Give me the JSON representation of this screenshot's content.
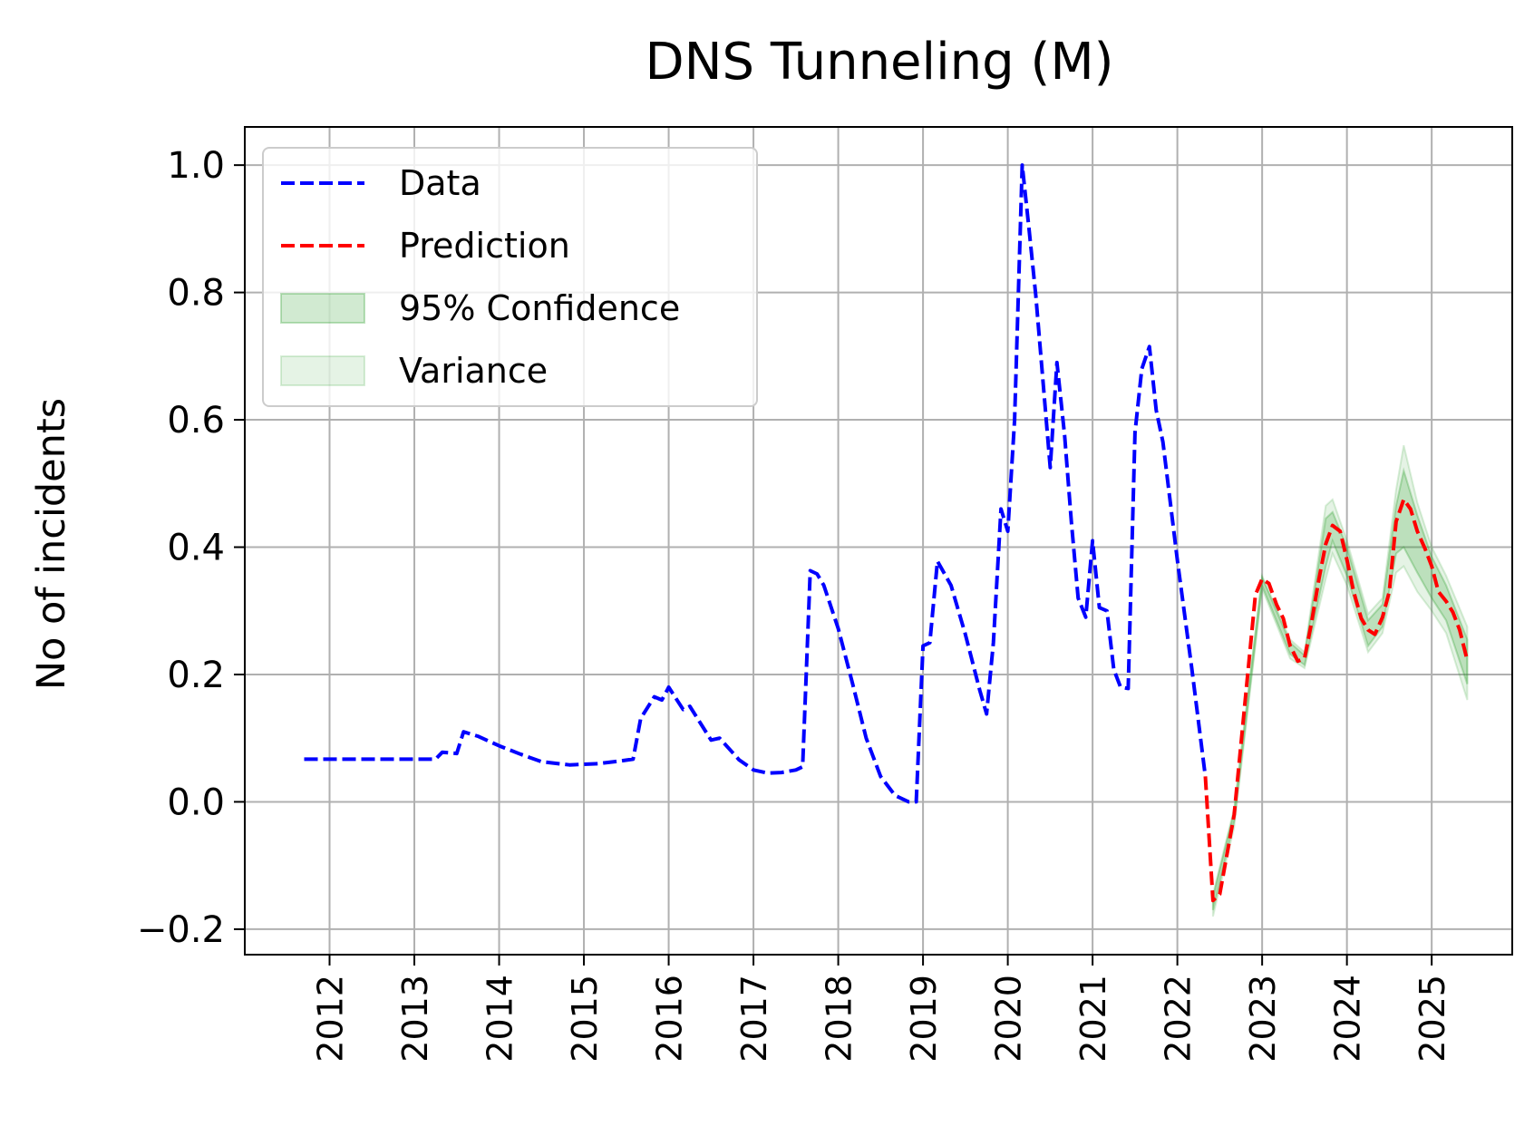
{
  "chart_data": {
    "type": "line",
    "title": "DNS Tunneling (M)",
    "xlabel": "",
    "ylabel": "No of incidents",
    "xlim": [
      2011.0,
      2025.95
    ],
    "ylim": [
      -0.24,
      1.06
    ],
    "x_ticks": [
      "2012",
      "2013",
      "2014",
      "2015",
      "2016",
      "2017",
      "2018",
      "2019",
      "2020",
      "2021",
      "2022",
      "2023",
      "2024",
      "2025"
    ],
    "y_ticks": [
      "1.0",
      "0.8",
      "0.6",
      "0.4",
      "0.2",
      "0.0",
      "−0.2"
    ],
    "grid": true,
    "legend_position": "top-left",
    "legend": [
      "Data",
      "Prediction",
      "95% Confidence",
      "Variance"
    ],
    "colors": {
      "data": "#0000ff",
      "prediction": "#ff0000",
      "confidence": "#2ca02c",
      "grid": "#b0b0b0"
    },
    "series": [
      {
        "name": "Data",
        "style": "dashed",
        "points": [
          [
            2011.7,
            0.067
          ],
          [
            2012.5,
            0.067
          ],
          [
            2013.0,
            0.067
          ],
          [
            2013.25,
            0.067
          ],
          [
            2013.33,
            0.078
          ],
          [
            2013.5,
            0.076
          ],
          [
            2013.58,
            0.11
          ],
          [
            2013.75,
            0.103
          ],
          [
            2014.0,
            0.088
          ],
          [
            2014.25,
            0.075
          ],
          [
            2014.5,
            0.063
          ],
          [
            2014.83,
            0.058
          ],
          [
            2015.17,
            0.06
          ],
          [
            2015.42,
            0.064
          ],
          [
            2015.58,
            0.067
          ],
          [
            2015.67,
            0.131
          ],
          [
            2015.83,
            0.165
          ],
          [
            2015.92,
            0.16
          ],
          [
            2016.0,
            0.18
          ],
          [
            2016.17,
            0.145
          ],
          [
            2016.25,
            0.15
          ],
          [
            2016.5,
            0.097
          ],
          [
            2016.6,
            0.1
          ],
          [
            2016.83,
            0.066
          ],
          [
            2017.0,
            0.05
          ],
          [
            2017.17,
            0.045
          ],
          [
            2017.33,
            0.046
          ],
          [
            2017.5,
            0.05
          ],
          [
            2017.58,
            0.055
          ],
          [
            2017.67,
            0.363
          ],
          [
            2017.75,
            0.358
          ],
          [
            2017.83,
            0.34
          ],
          [
            2018.0,
            0.272
          ],
          [
            2018.17,
            0.185
          ],
          [
            2018.33,
            0.1
          ],
          [
            2018.5,
            0.04
          ],
          [
            2018.67,
            0.01
          ],
          [
            2018.83,
            0.0
          ],
          [
            2018.92,
            0.0
          ],
          [
            2019.0,
            0.245
          ],
          [
            2019.08,
            0.25
          ],
          [
            2019.17,
            0.378
          ],
          [
            2019.33,
            0.34
          ],
          [
            2019.5,
            0.263
          ],
          [
            2019.67,
            0.175
          ],
          [
            2019.75,
            0.138
          ],
          [
            2019.83,
            0.25
          ],
          [
            2019.92,
            0.46
          ],
          [
            2020.0,
            0.425
          ],
          [
            2020.08,
            0.6
          ],
          [
            2020.17,
            1.0
          ],
          [
            2020.25,
            0.9
          ],
          [
            2020.33,
            0.795
          ],
          [
            2020.5,
            0.525
          ],
          [
            2020.58,
            0.69
          ],
          [
            2020.67,
            0.575
          ],
          [
            2020.75,
            0.44
          ],
          [
            2020.83,
            0.32
          ],
          [
            2020.92,
            0.29
          ],
          [
            2021.0,
            0.41
          ],
          [
            2021.08,
            0.305
          ],
          [
            2021.17,
            0.3
          ],
          [
            2021.25,
            0.208
          ],
          [
            2021.33,
            0.18
          ],
          [
            2021.42,
            0.178
          ],
          [
            2021.5,
            0.58
          ],
          [
            2021.58,
            0.68
          ],
          [
            2021.67,
            0.715
          ],
          [
            2021.75,
            0.615
          ],
          [
            2021.83,
            0.565
          ],
          [
            2022.0,
            0.38
          ],
          [
            2022.17,
            0.21
          ],
          [
            2022.33,
            0.04
          ]
        ]
      },
      {
        "name": "Prediction",
        "style": "dashed",
        "points": [
          [
            2022.33,
            0.04
          ],
          [
            2022.42,
            -0.155
          ],
          [
            2022.5,
            -0.145
          ],
          [
            2022.67,
            -0.02
          ],
          [
            2022.83,
            0.2
          ],
          [
            2022.92,
            0.325
          ],
          [
            2023.0,
            0.35
          ],
          [
            2023.08,
            0.343
          ],
          [
            2023.17,
            0.31
          ],
          [
            2023.25,
            0.288
          ],
          [
            2023.33,
            0.245
          ],
          [
            2023.42,
            0.221
          ],
          [
            2023.5,
            0.225
          ],
          [
            2023.58,
            0.28
          ],
          [
            2023.67,
            0.35
          ],
          [
            2023.75,
            0.405
          ],
          [
            2023.83,
            0.434
          ],
          [
            2023.92,
            0.425
          ],
          [
            2024.0,
            0.38
          ],
          [
            2024.08,
            0.33
          ],
          [
            2024.17,
            0.288
          ],
          [
            2024.25,
            0.27
          ],
          [
            2024.33,
            0.263
          ],
          [
            2024.42,
            0.29
          ],
          [
            2024.5,
            0.33
          ],
          [
            2024.58,
            0.44
          ],
          [
            2024.67,
            0.475
          ],
          [
            2024.75,
            0.46
          ],
          [
            2024.83,
            0.425
          ],
          [
            2024.92,
            0.398
          ],
          [
            2025.0,
            0.37
          ],
          [
            2025.08,
            0.33
          ],
          [
            2025.17,
            0.315
          ],
          [
            2025.25,
            0.298
          ],
          [
            2025.33,
            0.27
          ],
          [
            2025.42,
            0.222
          ]
        ]
      }
    ],
    "band_variance": {
      "x": [
        2022.42,
        2022.67,
        2023.0,
        2023.33,
        2023.5,
        2023.75,
        2023.83,
        2024.0,
        2024.25,
        2024.42,
        2024.58,
        2024.67,
        2024.83,
        2025.0,
        2025.17,
        2025.42
      ],
      "upper": [
        -0.145,
        -0.01,
        0.355,
        0.255,
        0.235,
        0.465,
        0.475,
        0.41,
        0.295,
        0.32,
        0.49,
        0.56,
        0.47,
        0.4,
        0.355,
        0.275
      ],
      "lower": [
        -0.18,
        -0.04,
        0.335,
        0.225,
        0.21,
        0.35,
        0.39,
        0.34,
        0.235,
        0.265,
        0.36,
        0.37,
        0.33,
        0.3,
        0.265,
        0.16
      ]
    },
    "band_confidence": {
      "x": [
        2022.42,
        2022.67,
        2023.0,
        2023.33,
        2023.5,
        2023.75,
        2023.83,
        2024.0,
        2024.25,
        2024.42,
        2024.58,
        2024.67,
        2024.83,
        2025.0,
        2025.17,
        2025.42
      ],
      "upper": [
        -0.15,
        -0.015,
        0.352,
        0.25,
        0.23,
        0.445,
        0.455,
        0.4,
        0.285,
        0.31,
        0.465,
        0.52,
        0.45,
        0.385,
        0.34,
        0.255
      ],
      "lower": [
        -0.17,
        -0.03,
        0.34,
        0.232,
        0.215,
        0.37,
        0.41,
        0.355,
        0.245,
        0.275,
        0.39,
        0.4,
        0.36,
        0.32,
        0.285,
        0.185
      ]
    }
  }
}
